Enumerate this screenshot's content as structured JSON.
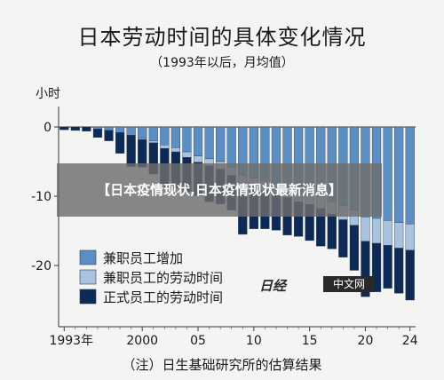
{
  "chart_data": {
    "type": "bar",
    "stacked": true,
    "title": "日本劳动时间的具体变化情况",
    "subtitle": "（1993年以后，月均值）",
    "ylabel": "小时",
    "ylim": [
      -25,
      0
    ],
    "yticks": [
      0,
      -10,
      -20
    ],
    "xtick_labels": [
      "1993年",
      "2000",
      "05",
      "10",
      "15",
      "20",
      "24"
    ],
    "grid": false,
    "legend_position": "bottom-left",
    "categories": [
      "1993",
      "1994",
      "1995",
      "1996",
      "1997",
      "1998",
      "1999",
      "2000",
      "2001",
      "2002",
      "2003",
      "2004",
      "2005",
      "2006",
      "2007",
      "2008",
      "2009",
      "2010",
      "2011",
      "2012",
      "2013",
      "2014",
      "2015",
      "2016",
      "2017",
      "2018",
      "2019",
      "2020",
      "2021",
      "2022",
      "2023",
      "2024"
    ],
    "series": [
      {
        "name": "兼职员工增加",
        "color": "#5b8ec4",
        "values": [
          0,
          0,
          0,
          -0.3,
          -0.5,
          -0.8,
          -1.2,
          -1.6,
          -2.0,
          -2.6,
          -3.0,
          -3.6,
          -4.2,
          -4.6,
          -5.0,
          -5.8,
          -7.0,
          -7.4,
          -7.8,
          -8.2,
          -8.7,
          -9.3,
          -9.6,
          -10.1,
          -10.8,
          -11.4,
          -12.0,
          -13.0,
          -13.2,
          -13.5,
          -13.8,
          -14.0
        ]
      },
      {
        "name": "兼职员工的劳动时间",
        "color": "#a9c2de",
        "values": [
          0,
          0,
          0,
          0,
          0,
          0,
          0,
          -0.2,
          -0.3,
          -0.5,
          -0.6,
          -0.8,
          -0.9,
          -1.0,
          -1.1,
          -1.2,
          -1.3,
          -1.3,
          -1.4,
          -1.4,
          -1.5,
          -1.5,
          -1.6,
          -1.7,
          -1.8,
          -2.0,
          -2.2,
          -3.5,
          -3.6,
          -3.6,
          -3.7,
          -3.8
        ]
      },
      {
        "name": "正式员工的劳动时间",
        "color": "#0c2a55",
        "values": [
          -0.4,
          -0.5,
          -0.6,
          -1.2,
          -1.5,
          -3.0,
          -4.5,
          -4.0,
          -4.5,
          -5.5,
          -5.2,
          -5.0,
          -4.8,
          -5.2,
          -5.0,
          -5.0,
          -7.2,
          -6.0,
          -5.5,
          -5.3,
          -5.4,
          -5.0,
          -5.2,
          -5.4,
          -5.0,
          -5.4,
          -6.5,
          -8.0,
          -7.0,
          -6.2,
          -6.5,
          -7.2
        ]
      }
    ]
  },
  "footnote": "（注）日生基础研究所的估算结果",
  "overlay_text": "【日本疫情现状,日本疫情现状最新消息】",
  "watermark": {
    "logo": "日经",
    "badge": "中文网"
  }
}
